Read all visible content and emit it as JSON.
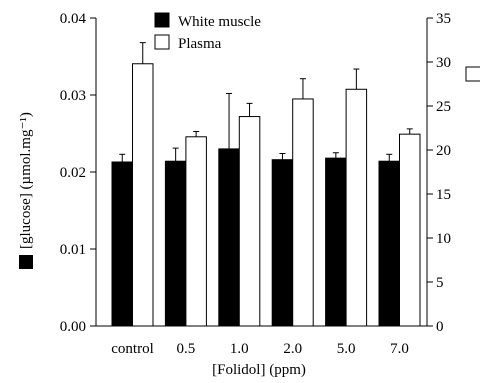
{
  "chart_data": {
    "type": "bar",
    "categories": [
      "control",
      "0.5",
      "1.0",
      "2.0",
      "5.0",
      "7.0"
    ],
    "series": [
      {
        "name": "White muscle",
        "axis": "left",
        "color": "#000000",
        "values": [
          0.0213,
          0.0214,
          0.023,
          0.0216,
          0.0218,
          0.0214
        ],
        "errors": [
          0.001,
          0.0017,
          0.0072,
          0.0008,
          0.0007,
          0.0009
        ]
      },
      {
        "name": "Plasma",
        "axis": "right",
        "color": "#ffffff",
        "values": [
          29.8,
          21.5,
          23.8,
          25.8,
          26.9,
          21.8
        ],
        "errors": [
          2.4,
          0.6,
          1.5,
          2.3,
          2.3,
          0.6
        ]
      }
    ],
    "xlabel": "[Folidol] (ppm)",
    "ylabel_left": "[glucose] (µmol.mg⁻¹)",
    "ylabel_right": "",
    "ylim_left": [
      0,
      0.04
    ],
    "yticks_left": [
      "0.00",
      "0.01",
      "0.02",
      "0.03",
      "0.04"
    ],
    "ylim_right": [
      0,
      35
    ],
    "yticks_right": [
      "0",
      "5",
      "10",
      "15",
      "20",
      "25",
      "30",
      "35"
    ],
    "legend_placement": "top-center",
    "grid": false
  }
}
